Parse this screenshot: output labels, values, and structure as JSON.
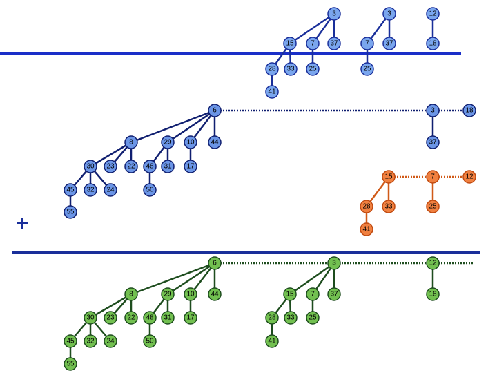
{
  "heaps": [
    {
      "nodes": [
        "3",
        "3",
        "12",
        "15",
        "7",
        "37",
        "7",
        "37",
        "18",
        "28",
        "33",
        "25",
        "25",
        "41"
      ]
    },
    {
      "nodes": [
        "6",
        "3",
        "18",
        "8",
        "29",
        "10",
        "44",
        "37",
        "30",
        "23",
        "22",
        "48",
        "31",
        "17",
        "45",
        "32",
        "24",
        "50",
        "55"
      ]
    },
    {
      "nodes": [
        "15",
        "7",
        "12",
        "28",
        "33",
        "25",
        "41"
      ]
    },
    {
      "nodes": [
        "6",
        "3",
        "12",
        "8",
        "29",
        "10",
        "44",
        "15",
        "7",
        "37",
        "18",
        "30",
        "23",
        "22",
        "48",
        "31",
        "17",
        "28",
        "33",
        "25",
        "45",
        "32",
        "24",
        "50",
        "41",
        "55"
      ]
    }
  ]
}
